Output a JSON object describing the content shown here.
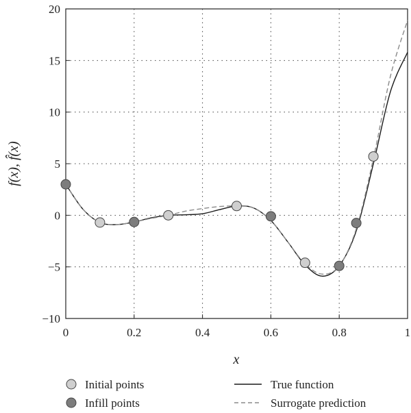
{
  "chart_data": {
    "type": "line",
    "xlabel": "x",
    "ylabel": "f(x), f̂(x)",
    "xlim": [
      0,
      1
    ],
    "ylim": [
      -10,
      20
    ],
    "x_ticks": [
      0,
      0.2,
      0.4,
      0.6,
      0.8,
      1
    ],
    "y_ticks": [
      -10,
      -5,
      0,
      5,
      10,
      15,
      20
    ],
    "x_tick_labels": [
      "0",
      "0.2",
      "0.4",
      "0.6",
      "0.8",
      "1"
    ],
    "y_tick_labels": [
      "−10",
      "−5",
      "0",
      "5",
      "10",
      "15",
      "20"
    ],
    "grid": "dotted",
    "legend_position": "bottom",
    "series": [
      {
        "name": "True function",
        "style": "solid",
        "color": "#1a1a1a",
        "x": [
          0,
          0.05,
          0.1,
          0.15,
          0.2,
          0.25,
          0.3,
          0.35,
          0.4,
          0.45,
          0.5,
          0.55,
          0.6,
          0.65,
          0.7,
          0.75,
          0.8,
          0.85,
          0.9,
          0.95,
          1
        ],
        "y": [
          3.0,
          0.6,
          -0.7,
          -0.9,
          -0.65,
          -0.25,
          0.0,
          0.05,
          0.15,
          0.55,
          0.9,
          0.7,
          -0.5,
          -2.6,
          -4.8,
          -5.9,
          -4.9,
          -1.5,
          5.0,
          12.0,
          15.8
        ]
      },
      {
        "name": "Surrogate prediction",
        "style": "dashed",
        "color": "#8a8a8a",
        "x": [
          0,
          0.05,
          0.1,
          0.15,
          0.2,
          0.25,
          0.3,
          0.35,
          0.4,
          0.45,
          0.5,
          0.55,
          0.6,
          0.65,
          0.7,
          0.75,
          0.8,
          0.85,
          0.9,
          0.95,
          1
        ],
        "y": [
          3.0,
          0.6,
          -0.7,
          -0.9,
          -0.65,
          -0.3,
          0.0,
          0.4,
          0.65,
          0.85,
          0.9,
          0.7,
          -0.5,
          -2.6,
          -4.7,
          -5.7,
          -4.9,
          -1.3,
          5.5,
          13.5,
          18.9
        ]
      },
      {
        "name": "Initial points",
        "type": "scatter",
        "color": "#cfcfcf",
        "x": [
          0.1,
          0.3,
          0.5,
          0.7,
          0.9
        ],
        "y": [
          -0.7,
          0.0,
          0.9,
          -4.6,
          5.7
        ]
      },
      {
        "name": "Infill points",
        "type": "scatter",
        "color": "#7d7d7d",
        "x": [
          0,
          0.2,
          0.6,
          0.8,
          0.85
        ],
        "y": [
          3.0,
          -0.65,
          -0.1,
          -4.9,
          -0.75
        ]
      }
    ]
  }
}
